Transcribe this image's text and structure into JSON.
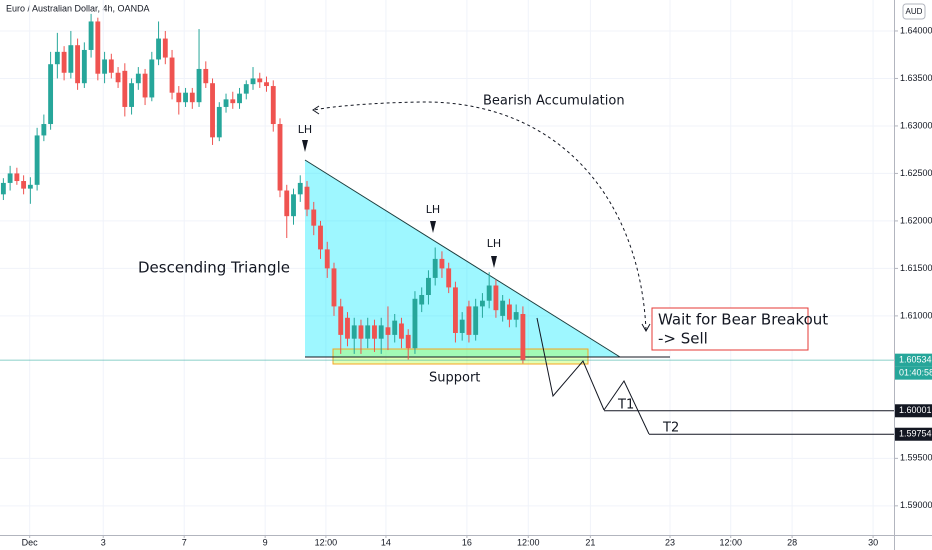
{
  "chart_data": {
    "type": "candlestick",
    "title": "Euro / Australian Dollar, 4h, OANDA",
    "currency": "AUD",
    "up_color": "#26a69a",
    "down_color": "#ef5350",
    "x": [
      0,
      1,
      2,
      3,
      4,
      5,
      6,
      7,
      8,
      9,
      10,
      11,
      12,
      13,
      14,
      15,
      16,
      17,
      18,
      19,
      20,
      21,
      22,
      23,
      24,
      25,
      26,
      27,
      28,
      29,
      30,
      31,
      32,
      33,
      34,
      35,
      36,
      37,
      38,
      39,
      40,
      41,
      42,
      43,
      44,
      45,
      46,
      47,
      48,
      49,
      50,
      51,
      52,
      53,
      54,
      55,
      56,
      57,
      58,
      59,
      60,
      61,
      62,
      63,
      64,
      65,
      66,
      67,
      68,
      69,
      70,
      71,
      72,
      73,
      74,
      75,
      76,
      77
    ],
    "open": [
      1.6228,
      1.624,
      1.625,
      1.6242,
      1.6234,
      1.6238,
      1.629,
      1.6302,
      1.6365,
      1.6378,
      1.6356,
      1.6385,
      1.6345,
      1.638,
      1.641,
      1.6355,
      1.637,
      1.6356,
      1.6358,
      1.632,
      1.6345,
      1.6355,
      1.633,
      1.637,
      1.6392,
      1.6372,
      1.6335,
      1.6325,
      1.6335,
      1.6325,
      1.636,
      1.6345,
      1.6288,
      1.632,
      1.6328,
      1.6324,
      1.6334,
      1.6344,
      1.635,
      1.6346,
      1.6342,
      1.6302,
      1.6232,
      1.6205,
      1.6228,
      1.6236,
      1.6212,
      1.6195,
      1.617,
      1.615,
      1.611,
      1.6098,
      1.6076,
      1.609,
      1.6076,
      1.609,
      1.6076,
      1.6088,
      1.608,
      1.6092,
      1.608,
      1.6066,
      1.6112,
      1.6122,
      1.614,
      1.616,
      1.615,
      1.613,
      1.6082,
      1.611,
      1.608,
      1.611,
      1.6116,
      1.6132,
      1.61,
      1.6112,
      1.6096,
      1.6102
    ],
    "high": [
      1.6245,
      1.6258,
      1.6256,
      1.6248,
      1.6246,
      1.6298,
      1.6312,
      1.6378,
      1.6398,
      1.6384,
      1.64,
      1.6392,
      1.6388,
      1.6418,
      1.6414,
      1.6378,
      1.6376,
      1.6362,
      1.6366,
      1.635,
      1.6362,
      1.636,
      1.6378,
      1.641,
      1.64,
      1.638,
      1.6342,
      1.634,
      1.634,
      1.6402,
      1.6368,
      1.635,
      1.6325,
      1.6334,
      1.6336,
      1.634,
      1.6348,
      1.6362,
      1.6356,
      1.6352,
      1.6348,
      1.6308,
      1.6238,
      1.6234,
      1.6248,
      1.6242,
      1.622,
      1.62,
      1.6178,
      1.6156,
      1.6118,
      1.6104,
      1.6098,
      1.6096,
      1.6098,
      1.6096,
      1.6098,
      1.611,
      1.6102,
      1.6098,
      1.6086,
      1.6126,
      1.613,
      1.6148,
      1.6172,
      1.6168,
      1.6156,
      1.6136,
      1.6104,
      1.6116,
      1.6118,
      1.6124,
      1.6146,
      1.6138,
      1.6122,
      1.6118,
      1.6112,
      1.611
    ],
    "low": [
      1.6222,
      1.6232,
      1.6238,
      1.6228,
      1.6218,
      1.6232,
      1.6284,
      1.6296,
      1.635,
      1.6348,
      1.635,
      1.6338,
      1.634,
      1.6372,
      1.6348,
      1.6345,
      1.635,
      1.634,
      1.631,
      1.6312,
      1.6338,
      1.6322,
      1.6326,
      1.6364,
      1.6365,
      1.6328,
      1.6312,
      1.632,
      1.6318,
      1.632,
      1.634,
      1.628,
      1.6284,
      1.6314,
      1.6318,
      1.6318,
      1.6328,
      1.6338,
      1.634,
      1.6336,
      1.6294,
      1.6225,
      1.6182,
      1.6196,
      1.622,
      1.6205,
      1.6185,
      1.616,
      1.614,
      1.61,
      1.606,
      1.6068,
      1.606,
      1.606,
      1.6066,
      1.6062,
      1.606,
      1.6064,
      1.6072,
      1.6066,
      1.6054,
      1.606,
      1.6104,
      1.6112,
      1.6132,
      1.614,
      1.6124,
      1.6072,
      1.6074,
      1.6072,
      1.6074,
      1.6098,
      1.6108,
      1.6098,
      1.6094,
      1.6088,
      1.6088,
      1.605
    ],
    "close": [
      1.624,
      1.625,
      1.6242,
      1.6234,
      1.6238,
      1.629,
      1.6302,
      1.6365,
      1.6378,
      1.6356,
      1.6385,
      1.6345,
      1.638,
      1.641,
      1.6355,
      1.637,
      1.6356,
      1.6346,
      1.632,
      1.6345,
      1.6355,
      1.633,
      1.637,
      1.6392,
      1.6372,
      1.6335,
      1.6325,
      1.6335,
      1.6325,
      1.636,
      1.6345,
      1.6288,
      1.632,
      1.6328,
      1.6324,
      1.6334,
      1.6344,
      1.635,
      1.6346,
      1.6342,
      1.6302,
      1.6232,
      1.6205,
      1.6228,
      1.624,
      1.6212,
      1.6195,
      1.617,
      1.615,
      1.611,
      1.608,
      1.6076,
      1.609,
      1.6076,
      1.609,
      1.6076,
      1.609,
      1.608,
      1.6095,
      1.6076,
      1.6066,
      1.6118,
      1.6122,
      1.614,
      1.616,
      1.615,
      1.613,
      1.6082,
      1.6096,
      1.608,
      1.611,
      1.6116,
      1.6132,
      1.6106,
      1.6116,
      1.6096,
      1.6104,
      1.6053
    ],
    "xlim": [
      -0.5,
      132
    ],
    "xticks": [
      {
        "value": 3.9,
        "label": "Dec"
      },
      {
        "value": 14.8,
        "label": "3"
      },
      {
        "value": 26.8,
        "label": "7"
      },
      {
        "value": 38.8,
        "label": "9"
      },
      {
        "value": 47.8,
        "label": "12:00"
      },
      {
        "value": 56.7,
        "label": "14"
      },
      {
        "value": 68.7,
        "label": "16"
      },
      {
        "value": 77.8,
        "label": "12:00"
      },
      {
        "value": 87.0,
        "label": "21"
      },
      {
        "value": 98.8,
        "label": "23"
      },
      {
        "value": 107.8,
        "label": "12:00"
      },
      {
        "value": 116.9,
        "label": "28"
      },
      {
        "value": 128.9,
        "label": "30"
      }
    ],
    "ylim": [
      1.58693,
      1.64326
    ],
    "yticks": [
      {
        "value": 1.64,
        "label": "1.64000"
      },
      {
        "value": 1.635,
        "label": "1.63500"
      },
      {
        "value": 1.63,
        "label": "1.63000"
      },
      {
        "value": 1.625,
        "label": "1.62500"
      },
      {
        "value": 1.62,
        "label": "1.62000"
      },
      {
        "value": 1.615,
        "label": "1.61500"
      },
      {
        "value": 1.61,
        "label": "1.61000"
      },
      {
        "value": 1.595,
        "label": "1.59500"
      },
      {
        "value": 1.59,
        "label": "1.59000"
      }
    ],
    "last_price": 1.60534,
    "last_price_color": "#26a69a",
    "countdown": "01:40:58",
    "targets": [
      {
        "name": "T1",
        "value": 1.60001
      },
      {
        "name": "T2",
        "value": 1.59754
      }
    ],
    "annotations": {
      "pattern": "Descending Triangle",
      "accumulation": "Bearish Accumulation",
      "support": "Support",
      "lower_highs": [
        "LH",
        "LH",
        "LH"
      ],
      "call_line1": "Wait for Bear Breakout",
      "call_line2": "-> Sell"
    }
  }
}
